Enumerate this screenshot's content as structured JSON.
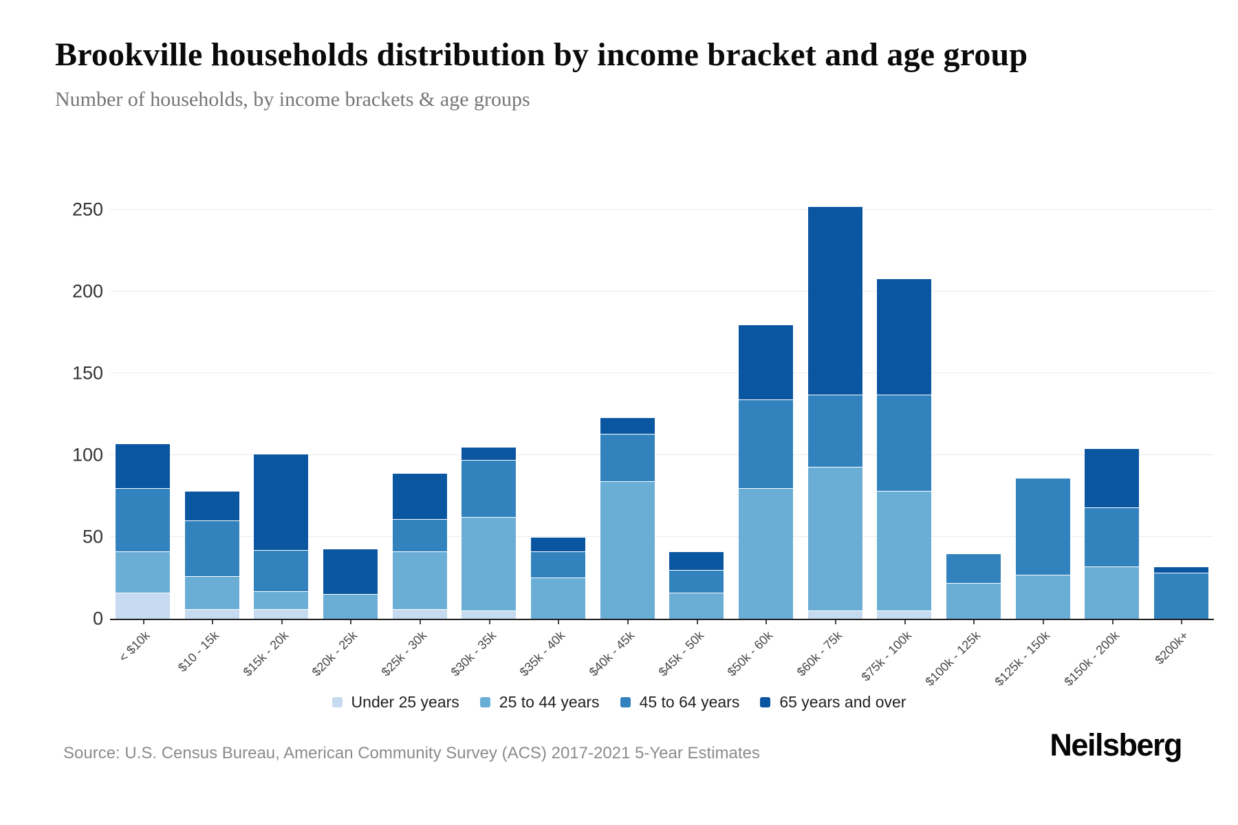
{
  "chart_data": {
    "type": "bar",
    "stacked": true,
    "title": "Brookville households distribution by income bracket and age group",
    "subtitle": "Number of households, by income brackets & age groups",
    "categories": [
      "< $10k",
      "$10 - 15k",
      "$15k - 20k",
      "$20k - 25k",
      "$25k - 30k",
      "$30k - 35k",
      "$35k - 40k",
      "$40k - 45k",
      "$45k - 50k",
      "$50k - 60k",
      "$60k - 75k",
      "$75k - 100k",
      "$100k - 125k",
      "$125k - 150k",
      "$150k - 200k",
      "$200k+"
    ],
    "series": [
      {
        "name": "Under 25 years",
        "color": "#c6dbef",
        "values": [
          16,
          6,
          6,
          0,
          6,
          5,
          0,
          0,
          0,
          0,
          5,
          5,
          0,
          0,
          0,
          0
        ]
      },
      {
        "name": "25 to 44 years",
        "color": "#6aaed6",
        "values": [
          25,
          20,
          11,
          15,
          35,
          57,
          25,
          84,
          16,
          80,
          88,
          73,
          22,
          27,
          32,
          0
        ]
      },
      {
        "name": "45 to 64 years",
        "color": "#3182bd",
        "values": [
          39,
          34,
          25,
          0,
          20,
          35,
          16,
          29,
          14,
          54,
          44,
          59,
          18,
          59,
          36,
          28
        ]
      },
      {
        "name": "65 years and over",
        "color": "#0b56a1",
        "values": [
          27,
          18,
          59,
          28,
          28,
          8,
          9,
          10,
          11,
          46,
          115,
          71,
          0,
          0,
          36,
          4
        ]
      }
    ],
    "totals": [
      107,
      78,
      101,
      43,
      89,
      105,
      50,
      123,
      41,
      180,
      252,
      208,
      40,
      86,
      104,
      32
    ],
    "ylim": [
      0,
      260
    ],
    "yticks": [
      0,
      50,
      100,
      150,
      200,
      250
    ],
    "grid": "horizontal",
    "legend_position": "bottom"
  },
  "source": {
    "text": "Source: U.S. Census Bureau, American Community Survey (ACS) 2017-2021 5-Year Estimates"
  },
  "branding": {
    "logo_text": "Neilsberg"
  }
}
